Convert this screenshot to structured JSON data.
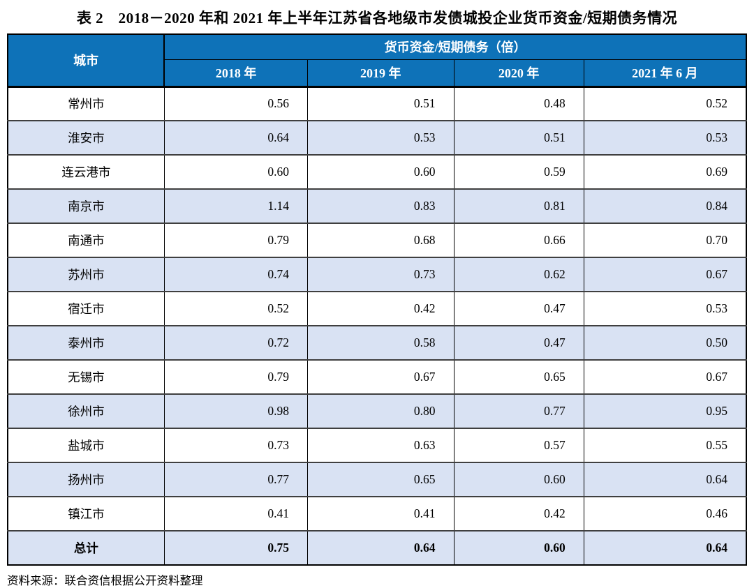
{
  "page": {
    "title": "表 2　2018－2020 年和 2021 年上半年江苏省各地级市发债城投企业货币资金/短期债务情况",
    "source_note": "资料来源：联合资信根据公开资料整理"
  },
  "table": {
    "city_header": "城市",
    "group_header": "货币资金/短期债务（倍）",
    "year_headers": [
      "2018 年",
      "2019 年",
      "2020 年",
      "2021 年 6 月"
    ],
    "rows": [
      {
        "city": "常州市",
        "values": [
          "0.56",
          "0.51",
          "0.48",
          "0.52"
        ]
      },
      {
        "city": "淮安市",
        "values": [
          "0.64",
          "0.53",
          "0.51",
          "0.53"
        ]
      },
      {
        "city": "连云港市",
        "values": [
          "0.60",
          "0.60",
          "0.59",
          "0.69"
        ]
      },
      {
        "city": "南京市",
        "values": [
          "1.14",
          "0.83",
          "0.81",
          "0.84"
        ]
      },
      {
        "city": "南通市",
        "values": [
          "0.79",
          "0.68",
          "0.66",
          "0.70"
        ]
      },
      {
        "city": "苏州市",
        "values": [
          "0.74",
          "0.73",
          "0.62",
          "0.67"
        ]
      },
      {
        "city": "宿迁市",
        "values": [
          "0.52",
          "0.42",
          "0.47",
          "0.53"
        ]
      },
      {
        "city": "泰州市",
        "values": [
          "0.72",
          "0.58",
          "0.47",
          "0.50"
        ]
      },
      {
        "city": "无锡市",
        "values": [
          "0.79",
          "0.67",
          "0.65",
          "0.67"
        ]
      },
      {
        "city": "徐州市",
        "values": [
          "0.98",
          "0.80",
          "0.77",
          "0.95"
        ]
      },
      {
        "city": "盐城市",
        "values": [
          "0.73",
          "0.63",
          "0.57",
          "0.55"
        ]
      },
      {
        "city": "扬州市",
        "values": [
          "0.77",
          "0.65",
          "0.60",
          "0.64"
        ]
      },
      {
        "city": "镇江市",
        "values": [
          "0.41",
          "0.41",
          "0.42",
          "0.46"
        ]
      },
      {
        "city": "总计",
        "values": [
          "0.75",
          "0.64",
          "0.60",
          "0.64"
        ],
        "is_total": true
      }
    ]
  },
  "colors": {
    "header_bg": "#0E72B8",
    "alt_row_bg": "#D9E2F3",
    "header_text": "#FFFFFF"
  }
}
